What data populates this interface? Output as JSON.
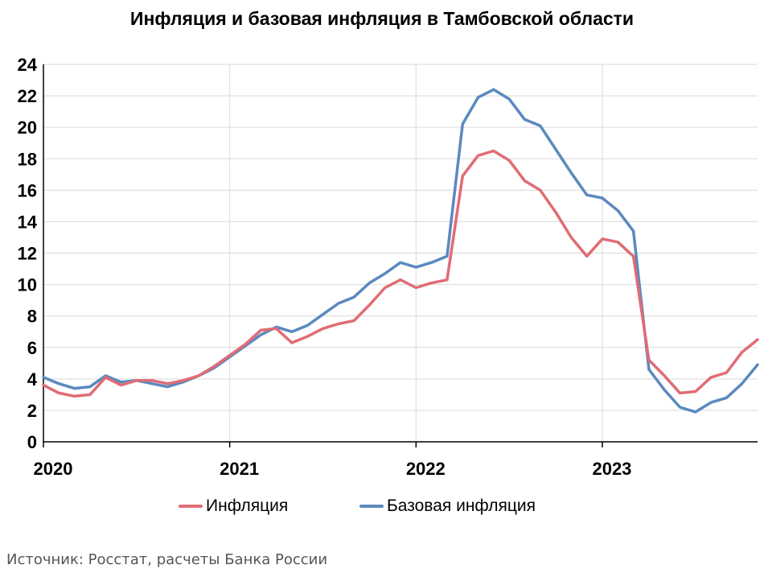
{
  "colors": {
    "inflation": "#E06C75",
    "core": "#5B89BE",
    "grid": "#D9D9D9",
    "axis": "#000000"
  },
  "chart_data": {
    "type": "line",
    "title": "Инфляция и базовая инфляция в Тамбовской области",
    "xlabel": "",
    "ylabel": "",
    "ylim": [
      0,
      24
    ],
    "yticks": [
      0,
      2,
      4,
      6,
      8,
      10,
      12,
      14,
      16,
      18,
      20,
      22,
      24
    ],
    "xlim": [
      0,
      46
    ],
    "x_major_labels": [
      {
        "x": 0,
        "label": "2020"
      },
      {
        "x": 12,
        "label": "2021"
      },
      {
        "x": 24,
        "label": "2022"
      },
      {
        "x": 36,
        "label": "2023"
      }
    ],
    "grid": true,
    "legend_position": "bottom",
    "series": [
      {
        "name": "Инфляция",
        "color": "#E06C75",
        "values": [
          3.6,
          3.1,
          2.9,
          3.0,
          4.1,
          3.6,
          3.9,
          3.9,
          3.7,
          3.9,
          4.2,
          4.8,
          5.5,
          6.2,
          7.1,
          7.2,
          6.3,
          6.7,
          7.2,
          7.5,
          7.7,
          8.7,
          9.8,
          10.3,
          9.8,
          10.1,
          10.3,
          16.9,
          18.2,
          18.5,
          17.9,
          16.6,
          16.0,
          14.6,
          13.0,
          11.8,
          12.9,
          12.7,
          11.8,
          5.2,
          4.2,
          3.1,
          3.2,
          4.1,
          4.4,
          5.7,
          6.5
        ]
      },
      {
        "name": "Базовая инфляция",
        "color": "#5B89BE",
        "values": [
          4.1,
          3.7,
          3.4,
          3.5,
          4.2,
          3.8,
          3.9,
          3.7,
          3.5,
          3.8,
          4.2,
          4.7,
          5.4,
          6.1,
          6.8,
          7.3,
          7.0,
          7.4,
          8.1,
          8.8,
          9.2,
          10.1,
          10.7,
          11.4,
          11.1,
          11.4,
          11.8,
          20.2,
          21.9,
          22.4,
          21.8,
          20.5,
          20.1,
          18.6,
          17.1,
          15.7,
          15.5,
          14.7,
          13.4,
          4.6,
          3.3,
          2.2,
          1.9,
          2.5,
          2.8,
          3.7,
          4.9
        ]
      }
    ],
    "source": "Источник: Росстат, расчеты Банка России"
  }
}
